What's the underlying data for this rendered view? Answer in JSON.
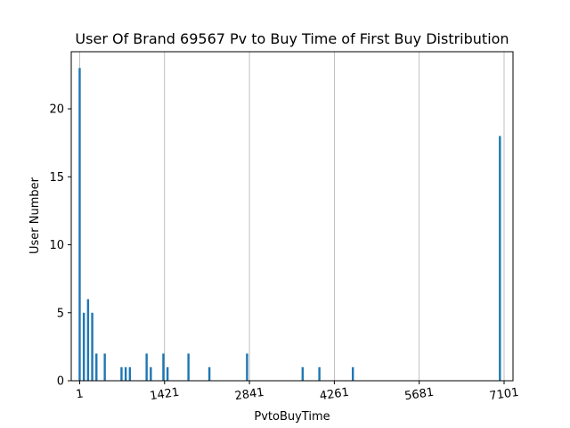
{
  "chart_data": {
    "type": "bar",
    "title": "User Of Brand 69567 Pv to Buy Time of First Buy Distribution",
    "xlabel": "PvtoBuyTime",
    "ylabel": "User Number",
    "xlim": [
      -140,
      7250
    ],
    "ylim": [
      0,
      24.2
    ],
    "x_ticks": [
      1,
      1421,
      2841,
      4261,
      5681,
      7101
    ],
    "x_tick_labels": [
      "1",
      "1421",
      "2841",
      "4261",
      "5681",
      "7101"
    ],
    "x_tick_label_rotation_deg": -8,
    "y_ticks": [
      0,
      5,
      10,
      15,
      20
    ],
    "y_tick_labels": [
      "0",
      "5",
      "10",
      "15",
      "20"
    ],
    "grid": {
      "x": true,
      "y": false
    },
    "bar_color": "#1f77b4",
    "bar_width": 36,
    "series": [
      {
        "x": [
          1,
          71,
          141,
          211,
          281,
          421,
          701,
          771,
          841,
          1121,
          1191,
          1401,
          1471,
          1821,
          2171,
          2801,
          3731,
          4011,
          4571,
          7031
        ],
        "values": [
          23,
          5,
          6,
          5,
          2,
          2,
          1,
          1,
          1,
          2,
          1,
          2,
          1,
          2,
          1,
          2,
          1,
          1,
          1,
          18
        ]
      }
    ]
  }
}
